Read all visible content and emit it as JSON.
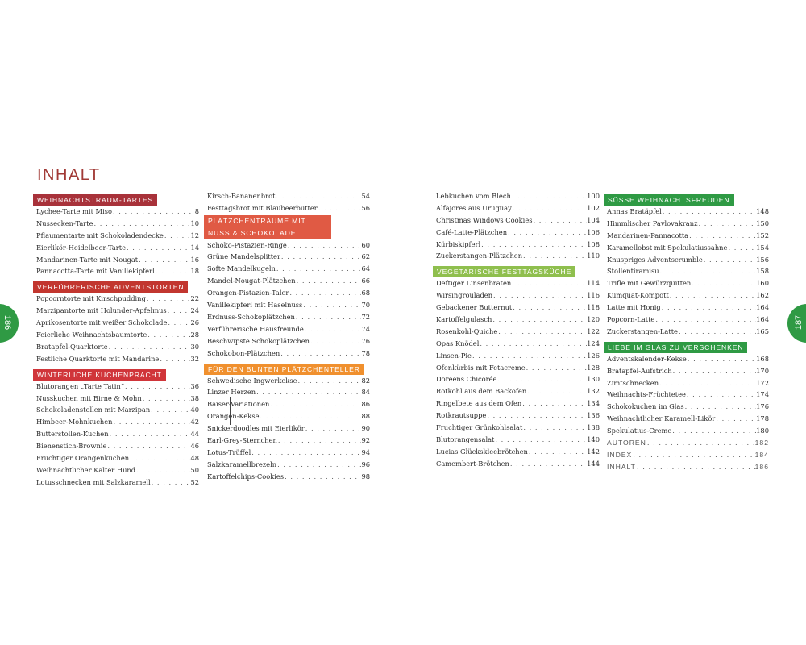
{
  "title": "INHALT",
  "page_left": "186",
  "page_right": "187",
  "colors": {
    "title": "#a13a36",
    "weihnachtstraum": "#a8323a",
    "verfuehrerisch": "#c2362f",
    "winterlich": "#d0353a",
    "plaetzchentraeume": "#e05a44",
    "bunter_teller": "#f0902e",
    "vegetarisch": "#8fbf4e",
    "suesse": "#2f9a44",
    "liebe": "#2f9a44",
    "tab": "#2f9a44"
  },
  "columns": [
    [
      {
        "type": "section",
        "label": "WEIHNACHTSTRAUM-TARTES",
        "color": "#a8323a"
      },
      {
        "type": "entry",
        "title": "Lychee-Tarte mit Miso",
        "page": "8"
      },
      {
        "type": "entry",
        "title": "Nussecken-Tarte",
        "page": "10"
      },
      {
        "type": "entry",
        "title": "Pflaumentarte mit Schokoladendecke",
        "page": "12"
      },
      {
        "type": "entry",
        "title": "Eierlikör-Heidelbeer-Tarte",
        "page": "14"
      },
      {
        "type": "entry",
        "title": "Mandarinen-Tarte mit Nougat",
        "page": "16"
      },
      {
        "type": "entry",
        "title": "Pannacotta-Tarte mit Vanillekipferl",
        "page": "18"
      },
      {
        "type": "section",
        "label": "VERFÜHRERISCHE ADVENTSTORTEN",
        "color": "#c2362f"
      },
      {
        "type": "entry",
        "title": "Popcorntorte mit Kirschpudding",
        "page": "22"
      },
      {
        "type": "entry",
        "title": "Marzipantorte mit Holunder-Apfelmus",
        "page": "24"
      },
      {
        "type": "entry",
        "title": "Aprikosentorte mit weißer Schokolade",
        "page": "26"
      },
      {
        "type": "entry",
        "title": "Feierliche Weihnachtsbaumtorte",
        "page": "28"
      },
      {
        "type": "entry",
        "title": "Bratapfel-Quarktorte",
        "page": "30"
      },
      {
        "type": "entry",
        "title": "Festliche Quarktorte mit Mandarine",
        "page": "32"
      },
      {
        "type": "section",
        "label": "WINTERLICHE KUCHENPRACHT",
        "color": "#d0353a"
      },
      {
        "type": "entry",
        "title": "Blutorangen „Tarte Tatin“",
        "page": "36"
      },
      {
        "type": "entry",
        "title": "Nusskuchen mit Birne & Mohn",
        "page": "38"
      },
      {
        "type": "entry",
        "title": "Schokoladenstollen mit Marzipan",
        "page": "40"
      },
      {
        "type": "entry",
        "title": "Himbeer-Mohnkuchen",
        "page": "42"
      },
      {
        "type": "entry",
        "title": "Butterstollen-Kuchen",
        "page": "44"
      },
      {
        "type": "entry",
        "title": "Bienenstich-Brownie",
        "page": "46"
      },
      {
        "type": "entry",
        "title": "Fruchtiger Orangenkuchen",
        "page": "48"
      },
      {
        "type": "entry",
        "title": "Weihnachtlicher Kalter Hund",
        "page": "50"
      },
      {
        "type": "entry",
        "title": "Lotusschnecken mit Salzkaramell",
        "page": "52"
      }
    ],
    [
      {
        "type": "entry",
        "title": "Kirsch-Bananenbrot",
        "page": "54"
      },
      {
        "type": "entry",
        "title": "Festtagsbrot mit Blaubeerbutter",
        "page": "56"
      },
      {
        "type": "section",
        "label": "PLÄTZCHENTRÄUME MIT NUSS & SCHOKOLADE",
        "color": "#e05a44",
        "wrap": true
      },
      {
        "type": "entry",
        "title": "Schoko-Pistazien-Ringe",
        "page": "60"
      },
      {
        "type": "entry",
        "title": "Grüne Mandelsplitter",
        "page": "62"
      },
      {
        "type": "entry",
        "title": "Softe Mandelkugeln",
        "page": "64"
      },
      {
        "type": "entry",
        "title": "Mandel-Nougat-Plätzchen",
        "page": "66"
      },
      {
        "type": "entry",
        "title": "Orangen-Pistazien-Taler",
        "page": "68"
      },
      {
        "type": "entry",
        "title": "Vanillekipferl mit Haselnuss",
        "page": "70"
      },
      {
        "type": "entry",
        "title": "Erdnuss-Schokoplätzchen",
        "page": "72"
      },
      {
        "type": "entry",
        "title": "Verführerische Hausfreunde",
        "page": "74"
      },
      {
        "type": "entry",
        "title": "Beschwipste Schokoplätzchen",
        "page": "76"
      },
      {
        "type": "entry",
        "title": "Schokobon-Plätzchen",
        "page": "78"
      },
      {
        "type": "section",
        "label": "FÜR DEN BUNTEN PLÄTZCHENTELLER",
        "color": "#f0902e"
      },
      {
        "type": "entry",
        "title": "Schwedische Ingwerkekse",
        "page": "82"
      },
      {
        "type": "entry",
        "title": "Linzer Herzen",
        "page": "84"
      },
      {
        "type": "entry",
        "title": "Baiser-Variationen",
        "page": "86"
      },
      {
        "type": "entry",
        "title": "Orangen-Kekse",
        "page": "88"
      },
      {
        "type": "entry",
        "title": "Snickerdoodles mit Eierlikör",
        "page": "90"
      },
      {
        "type": "entry",
        "title": "Earl-Grey-Sternchen",
        "page": "92"
      },
      {
        "type": "entry",
        "title": "Lotus-Trüffel",
        "page": "94"
      },
      {
        "type": "entry",
        "title": "Salzkaramellbrezeln",
        "page": "96"
      },
      {
        "type": "entry",
        "title": "Kartoffelchips-Cookies",
        "page": "98"
      }
    ],
    [
      {
        "type": "entry",
        "title": "Lebkuchen vom Blech",
        "page": "100"
      },
      {
        "type": "entry",
        "title": "Alfajores aus Uruguay",
        "page": "102"
      },
      {
        "type": "entry",
        "title": "Christmas Windows Cookies",
        "page": "104"
      },
      {
        "type": "entry",
        "title": "Café-Latte-Plätzchen",
        "page": "106"
      },
      {
        "type": "entry",
        "title": "Kürbiskipferl",
        "page": "108"
      },
      {
        "type": "entry",
        "title": "Zuckerstangen-Plätzchen",
        "page": "110"
      },
      {
        "type": "section",
        "label": "VEGETARISCHE FESTTAGSKÜCHE",
        "color": "#8fbf4e"
      },
      {
        "type": "entry",
        "title": "Deftiger Linsenbraten",
        "page": "114"
      },
      {
        "type": "entry",
        "title": "Wirsingrouladen",
        "page": "116"
      },
      {
        "type": "entry",
        "title": "Gebackener Butternut",
        "page": "118"
      },
      {
        "type": "entry",
        "title": "Kartoffelgulasch",
        "page": "120"
      },
      {
        "type": "entry",
        "title": "Rosenkohl-Quiche",
        "page": "122"
      },
      {
        "type": "entry",
        "title": "Opas Knödel",
        "page": "124"
      },
      {
        "type": "entry",
        "title": "Linsen-Pie",
        "page": "126"
      },
      {
        "type": "entry",
        "title": "Ofenkürbis mit Fetacreme",
        "page": "128"
      },
      {
        "type": "entry",
        "title": "Doreens Chicorée",
        "page": "130"
      },
      {
        "type": "entry",
        "title": "Rotkohl aus dem Backofen",
        "page": "132"
      },
      {
        "type": "entry",
        "title": "Ringelbete aus dem Ofen",
        "page": "134"
      },
      {
        "type": "entry",
        "title": "Rotkrautsuppe",
        "page": "136"
      },
      {
        "type": "entry",
        "title": "Fruchtiger Grünkohlsalat",
        "page": "138"
      },
      {
        "type": "entry",
        "title": "Blutorangensalat",
        "page": "140"
      },
      {
        "type": "entry",
        "title": "Lucias Glückskleebrötchen",
        "page": "142"
      },
      {
        "type": "entry",
        "title": "Camembert-Brötchen",
        "page": "144"
      }
    ],
    [
      {
        "type": "section",
        "label": "SÜSSE WEIHNACHTSFREUDEN",
        "color": "#2f9a44"
      },
      {
        "type": "entry",
        "title": "Annas Bratäpfel",
        "page": "148"
      },
      {
        "type": "entry",
        "title": "Himmlischer Pavlovakranz",
        "page": "150"
      },
      {
        "type": "entry",
        "title": "Mandarinen-Pannacotta",
        "page": "152"
      },
      {
        "type": "entry",
        "title": "Karamellobst mit Spekulatiussahne",
        "page": "154"
      },
      {
        "type": "entry",
        "title": "Knuspriges Adventscrumble",
        "page": "156"
      },
      {
        "type": "entry",
        "title": "Stollentiramisu",
        "page": "158"
      },
      {
        "type": "entry",
        "title": "Trifle mit Gewürzquitten",
        "page": "160"
      },
      {
        "type": "entry",
        "title": "Kumquat-Kompott",
        "page": "162"
      },
      {
        "type": "entry",
        "title": "Latte mit Honig",
        "page": "164"
      },
      {
        "type": "entry",
        "title": "Popcorn-Latte",
        "page": "164"
      },
      {
        "type": "entry",
        "title": "Zuckerstangen-Latte",
        "page": "165"
      },
      {
        "type": "section",
        "label": "LIEBE IM GLAS ZU VERSCHENKEN",
        "color": "#2f9a44"
      },
      {
        "type": "entry",
        "title": "Adventskalender-Kekse",
        "page": "168"
      },
      {
        "type": "entry",
        "title": "Bratapfel-Aufstrich",
        "page": "170"
      },
      {
        "type": "entry",
        "title": "Zimtschnecken",
        "page": "172"
      },
      {
        "type": "entry",
        "title": "Weihnachts-Früchtetee",
        "page": "174"
      },
      {
        "type": "entry",
        "title": "Schokokuchen im Glas",
        "page": "176"
      },
      {
        "type": "entry",
        "title": "Weihnachtlicher Karamell-Likör",
        "page": "178"
      },
      {
        "type": "entry",
        "title": "Spekulatius-Creme",
        "page": "180"
      },
      {
        "type": "entry",
        "title": "AUTOREN",
        "page": "182",
        "caps": true
      },
      {
        "type": "entry",
        "title": "INDEX",
        "page": "184",
        "caps": true
      },
      {
        "type": "entry",
        "title": "INHALT",
        "page": "186",
        "caps": true
      }
    ]
  ]
}
